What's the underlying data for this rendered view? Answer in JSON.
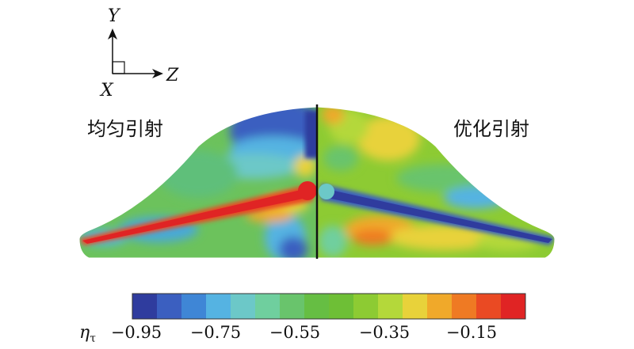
{
  "axes": {
    "y_label": "Y",
    "z_label": "Z",
    "x_label": "X"
  },
  "labels": {
    "left": "均匀引射",
    "right": "优化引射"
  },
  "colorbar": {
    "symbol": "η",
    "subscript": "τ",
    "ticks": [
      "−0.95",
      "−0.75",
      "−0.55",
      "−0.35",
      "−0.15"
    ],
    "colors": [
      "#2f3c9e",
      "#3b5fc0",
      "#3f86d6",
      "#55b3e2",
      "#6cc8c8",
      "#6fcf9e",
      "#69c46c",
      "#66be43",
      "#6ebf36",
      "#8dcb33",
      "#b4d83a",
      "#e8d23a",
      "#f0a92a",
      "#ef7a23",
      "#ea4a23",
      "#e02424"
    ]
  }
}
